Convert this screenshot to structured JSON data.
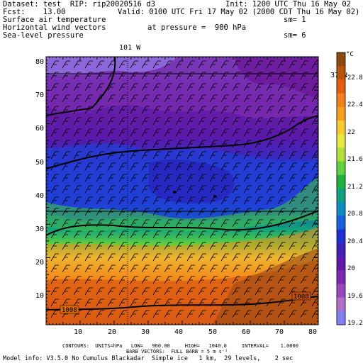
{
  "header": {
    "dataset_line": "Dataset: test  RIP: rip20020516 d3",
    "init_line": "Init: 1200 UTC Thu 16 May 02",
    "fcst_line": "Fcst:    13.00",
    "valid_line": "Valid: 0100 UTC Fri 17 May 02 (2000 CDT Thu 16 May 02)",
    "field_1": "Surface air temperature",
    "field_2": "Horizontal wind vectors",
    "field_3": "Sea-level pressure",
    "pressure_label": "at pressure =  900 hPa",
    "sm_1": "sm= 1",
    "sm_2": "sm= 6"
  },
  "map": {
    "lon_label": "101 W",
    "lat_label": "37 N",
    "x_ticks": [
      "10",
      "20",
      "30",
      "40",
      "50",
      "60",
      "70",
      "80"
    ],
    "y_ticks": [
      "10",
      "20",
      "30",
      "40",
      "50",
      "60",
      "70",
      "80"
    ],
    "contour_labels": [
      "1008",
      "1008"
    ]
  },
  "colorbar": {
    "unit": "°C",
    "labels": [
      "22.8",
      "22.4",
      "22",
      "21.6",
      "21.2",
      "20.8",
      "20.4",
      "20",
      "19.6",
      "19.2"
    ],
    "colors": [
      "#8a4a12",
      "#b85410",
      "#e06010",
      "#f08020",
      "#f8a020",
      "#f8cc30",
      "#e8e840",
      "#b0e040",
      "#60d040",
      "#20b040",
      "#10a080",
      "#1088c0",
      "#1860d8",
      "#2030d0",
      "#4020b0",
      "#6018a8",
      "#7e28b0",
      "#9848b8",
      "#b070c8",
      "#8080f0"
    ]
  },
  "footer": {
    "line1": "CONTOURS:  UNITS=hPa   LOW=   960.00     HIGH=   1040.0     INTERVAL=    1.0000",
    "line2": "BARB VECTORS:  FULL BARB = 5 m s⁻¹",
    "line3": "Model info: V3.5.0 No Cumulus Blackadar  Simple ice   1 km,  29 levels,    2 sec"
  }
}
